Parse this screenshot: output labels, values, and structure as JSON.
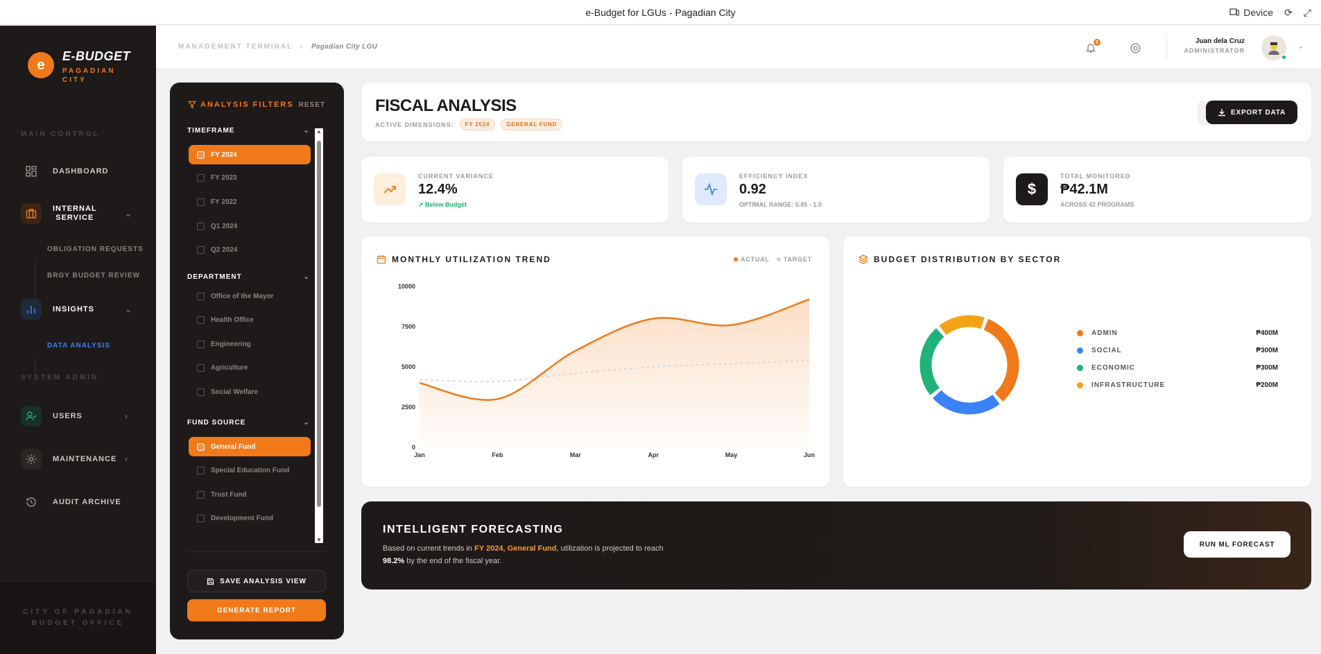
{
  "window": {
    "title": "e-Budget for LGUs - Pagadian City",
    "device_label": "Device"
  },
  "brand": {
    "logo_letter": "e",
    "title": "E-BUDGET",
    "subtitle_line1": "PAGADIAN",
    "subtitle_line2": "CITY"
  },
  "sidebar": {
    "section_main": "MAIN CONTROL",
    "dashboard": "DASHBOARD",
    "internal_service_line1": "INTERNAL",
    "internal_service_line2": "SERVICE",
    "obligation_requests": "OBLIGATION REQUESTS",
    "brgy_budget_review": "BRGY BUDGET REVIEW",
    "insights": "INSIGHTS",
    "data_analysis": "DATA ANALYSIS",
    "section_admin": "SYSTEM ADMIN",
    "users": "USERS",
    "maintenance": "MAINTENANCE",
    "audit_archive": "AUDIT ARCHIVE",
    "footer_line1": "CITY OF PAGADIAN",
    "footer_line2": "BUDGET OFFICE"
  },
  "header": {
    "crumb_root": "MANAGEMENT TERMINAL",
    "crumb_sep": "›",
    "crumb_current": "Pagadian City LGU",
    "notification_count": "2",
    "user_name": "Juan dela Cruz",
    "user_role": "ADMINISTRATOR"
  },
  "filters": {
    "title": "ANALYSIS FILTERS",
    "reset": "RESET",
    "timeframe_label": "TIMEFRAME",
    "timeframe": [
      "FY 2024",
      "FY 2023",
      "FY 2022",
      "Q1 2024",
      "Q2 2024"
    ],
    "department_label": "DEPARTMENT",
    "department": [
      "Office of the Mayor",
      "Health Office",
      "Engineering",
      "Agriculture",
      "Social Welfare"
    ],
    "fund_label": "FUND SOURCE",
    "fund": [
      "General Fund",
      "Special Education Fund",
      "Trust Fund",
      "Development Fund"
    ],
    "save_view": "SAVE ANALYSIS VIEW",
    "generate": "GENERATE REPORT"
  },
  "analysis": {
    "title": "FISCAL ANALYSIS",
    "dims_label": "ACTIVE DIMENSIONS:",
    "chip1": "FY 2024",
    "chip2": "GENERAL FUND",
    "export": "EXPORT DATA"
  },
  "stats": {
    "variance": {
      "label": "CURRENT VARIANCE",
      "value": "12.4%",
      "sub": "Below Budget"
    },
    "efficiency": {
      "label": "EFFICIENCY INDEX",
      "value": "0.92",
      "sub": "OPTIMAL RANGE: 0.85 - 1.0"
    },
    "monitored": {
      "label": "TOTAL MONITORED",
      "value": "₱42.1M",
      "sub": "ACROSS 42 PROGRAMS"
    }
  },
  "trend_card": {
    "title": "MONTHLY UTILIZATION TREND",
    "legend_actual": "ACTUAL",
    "legend_target": "TARGET"
  },
  "sector_card": {
    "title": "BUDGET DISTRIBUTION BY SECTOR"
  },
  "chart_data": [
    {
      "type": "area",
      "title": "MONTHLY UTILIZATION TREND",
      "categories": [
        "Jan",
        "Feb",
        "Mar",
        "Apr",
        "May",
        "Jun"
      ],
      "series": [
        {
          "name": "ACTUAL",
          "values": [
            4000,
            3000,
            6000,
            8000,
            7600,
            9200
          ]
        },
        {
          "name": "TARGET",
          "values": [
            4200,
            4100,
            4600,
            5000,
            5200,
            5400
          ]
        }
      ],
      "yticks": [
        0,
        2500,
        5000,
        7500,
        10000
      ],
      "ylim": [
        0,
        10000
      ],
      "colors": {
        "actual": "#f07a1a",
        "target": "#cbd3e0"
      }
    },
    {
      "type": "pie",
      "title": "BUDGET DISTRIBUTION BY SECTOR",
      "donut": true,
      "slices": [
        {
          "label": "ADMIN",
          "value": 400,
          "display": "₱400M",
          "color": "#f07a1a"
        },
        {
          "label": "SOCIAL",
          "value": 300,
          "display": "₱300M",
          "color": "#3b82f6"
        },
        {
          "label": "ECONOMIC",
          "value": 300,
          "display": "₱300M",
          "color": "#1fb37a"
        },
        {
          "label": "INFRASTRUCTURE",
          "value": 200,
          "display": "₱200M",
          "color": "#f5a316"
        }
      ]
    }
  ],
  "forecast": {
    "title": "INTELLIGENT FORECASTING",
    "t1": "Based on current trends in",
    "hl": "FY 2024, General Fund",
    "t2": ", utilization is projected to reach",
    "pct": "98.2%",
    "t3": "by the end of the fiscal year.",
    "button": "RUN ML FORECAST"
  },
  "colors": {
    "accent": "#f07a1a",
    "dark": "#1d1a19",
    "success": "#1fb36b"
  }
}
